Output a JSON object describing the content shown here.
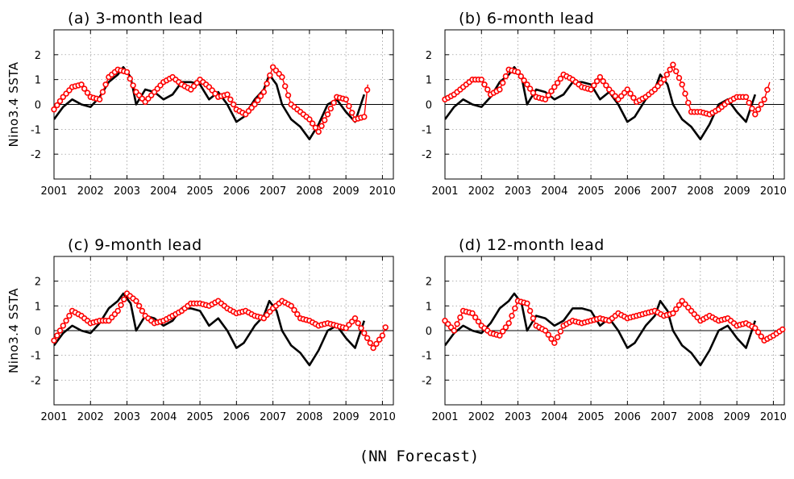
{
  "figure": {
    "caption": "(NN Forecast)",
    "colors": {
      "observed": "#000000",
      "forecast": "#ff0000"
    }
  },
  "chart_data": [
    {
      "type": "line",
      "title": "(a) 3-month lead",
      "ylabel": "Nino3.4 SSTA",
      "xlim": [
        2001.0,
        2010.3
      ],
      "ylim": [
        -3,
        3
      ],
      "xticks": [
        "2001",
        "2002",
        "2003",
        "2004",
        "2005",
        "2006",
        "2007",
        "2008",
        "2009",
        "2010"
      ],
      "yticks": [
        "-2",
        "-1",
        "0",
        "1",
        "2"
      ],
      "grid": true,
      "observed": {
        "x": [
          2001.0,
          2001.25,
          2001.5,
          2001.75,
          2002.0,
          2002.25,
          2002.5,
          2002.75,
          2002.9,
          2003.1,
          2003.25,
          2003.5,
          2003.75,
          2004.0,
          2004.25,
          2004.5,
          2004.75,
          2005.0,
          2005.25,
          2005.5,
          2005.75,
          2006.0,
          2006.2,
          2006.5,
          2006.75,
          2006.9,
          2007.1,
          2007.25,
          2007.5,
          2007.75,
          2008.0,
          2008.25,
          2008.5,
          2008.75,
          2009.0,
          2009.25,
          2009.5
        ],
        "y": [
          -0.6,
          -0.1,
          0.2,
          0.0,
          -0.1,
          0.3,
          0.9,
          1.2,
          1.5,
          1.1,
          0.0,
          0.6,
          0.5,
          0.2,
          0.4,
          0.9,
          0.9,
          0.8,
          0.2,
          0.5,
          0.0,
          -0.7,
          -0.5,
          0.2,
          0.6,
          1.2,
          0.8,
          0.0,
          -0.6,
          -0.9,
          -1.4,
          -0.8,
          0.0,
          0.2,
          -0.3,
          -0.7,
          0.4
        ]
      },
      "forecast": {
        "x": [
          2001.0,
          2001.25,
          2001.5,
          2001.75,
          2002.0,
          2002.25,
          2002.5,
          2002.75,
          2003.0,
          2003.25,
          2003.5,
          2003.75,
          2004.0,
          2004.25,
          2004.5,
          2004.75,
          2005.0,
          2005.25,
          2005.5,
          2005.75,
          2006.0,
          2006.25,
          2006.5,
          2006.75,
          2007.0,
          2007.25,
          2007.5,
          2007.75,
          2008.0,
          2008.25,
          2008.5,
          2008.75,
          2009.0,
          2009.25,
          2009.5,
          2009.6
        ],
        "y": [
          -0.2,
          0.3,
          0.7,
          0.8,
          0.3,
          0.2,
          1.1,
          1.4,
          1.3,
          0.5,
          0.1,
          0.5,
          0.9,
          1.1,
          0.8,
          0.6,
          1.0,
          0.7,
          0.3,
          0.4,
          -0.2,
          -0.4,
          0.0,
          0.5,
          1.5,
          1.1,
          0.0,
          -0.3,
          -0.6,
          -1.1,
          -0.4,
          0.3,
          0.2,
          -0.6,
          -0.5,
          0.8
        ]
      }
    },
    {
      "type": "line",
      "title": "(b) 6-month lead",
      "ylabel": "",
      "xlim": [
        2001.0,
        2010.3
      ],
      "ylim": [
        -3,
        3
      ],
      "xticks": [
        "2001",
        "2002",
        "2003",
        "2004",
        "2005",
        "2006",
        "2007",
        "2008",
        "2009",
        "2010"
      ],
      "yticks": [
        "-2",
        "-1",
        "0",
        "1",
        "2"
      ],
      "grid": true,
      "observed": {
        "x": [
          2001.0,
          2001.25,
          2001.5,
          2001.75,
          2002.0,
          2002.25,
          2002.5,
          2002.75,
          2002.9,
          2003.1,
          2003.25,
          2003.5,
          2003.75,
          2004.0,
          2004.25,
          2004.5,
          2004.75,
          2005.0,
          2005.25,
          2005.5,
          2005.75,
          2006.0,
          2006.2,
          2006.5,
          2006.75,
          2006.9,
          2007.1,
          2007.25,
          2007.5,
          2007.75,
          2008.0,
          2008.25,
          2008.5,
          2008.75,
          2009.0,
          2009.25,
          2009.5
        ],
        "y": [
          -0.6,
          -0.1,
          0.2,
          0.0,
          -0.1,
          0.3,
          0.9,
          1.2,
          1.5,
          1.1,
          0.0,
          0.6,
          0.5,
          0.2,
          0.4,
          0.9,
          0.9,
          0.8,
          0.2,
          0.5,
          0.0,
          -0.7,
          -0.5,
          0.2,
          0.6,
          1.2,
          0.8,
          0.0,
          -0.6,
          -0.9,
          -1.4,
          -0.8,
          0.0,
          0.2,
          -0.3,
          -0.7,
          0.4
        ]
      },
      "forecast": {
        "x": [
          2001.0,
          2001.25,
          2001.5,
          2001.75,
          2002.0,
          2002.25,
          2002.5,
          2002.75,
          2003.0,
          2003.25,
          2003.5,
          2003.75,
          2004.0,
          2004.25,
          2004.5,
          2004.75,
          2005.0,
          2005.25,
          2005.5,
          2005.75,
          2006.0,
          2006.25,
          2006.5,
          2006.75,
          2007.0,
          2007.25,
          2007.5,
          2007.75,
          2008.0,
          2008.25,
          2008.5,
          2008.75,
          2009.0,
          2009.25,
          2009.5,
          2009.75,
          2009.9
        ],
        "y": [
          0.2,
          0.4,
          0.7,
          1.0,
          1.0,
          0.4,
          0.6,
          1.4,
          1.3,
          0.8,
          0.3,
          0.2,
          0.7,
          1.2,
          1.0,
          0.7,
          0.6,
          1.1,
          0.6,
          0.2,
          0.6,
          0.1,
          0.3,
          0.6,
          1.0,
          1.6,
          0.8,
          -0.3,
          -0.3,
          -0.4,
          -0.2,
          0.1,
          0.3,
          0.3,
          -0.4,
          0.2,
          0.9
        ]
      }
    },
    {
      "type": "line",
      "title": "(c) 9-month lead",
      "ylabel": "Nino3.4 SSTA",
      "xlim": [
        2001.0,
        2010.3
      ],
      "ylim": [
        -3,
        3
      ],
      "xticks": [
        "2001",
        "2002",
        "2003",
        "2004",
        "2005",
        "2006",
        "2007",
        "2008",
        "2009",
        "2010"
      ],
      "yticks": [
        "-2",
        "-1",
        "0",
        "1",
        "2"
      ],
      "grid": true,
      "observed": {
        "x": [
          2001.0,
          2001.25,
          2001.5,
          2001.75,
          2002.0,
          2002.25,
          2002.5,
          2002.75,
          2002.9,
          2003.1,
          2003.25,
          2003.5,
          2003.75,
          2004.0,
          2004.25,
          2004.5,
          2004.75,
          2005.0,
          2005.25,
          2005.5,
          2005.75,
          2006.0,
          2006.2,
          2006.5,
          2006.75,
          2006.9,
          2007.1,
          2007.25,
          2007.5,
          2007.75,
          2008.0,
          2008.25,
          2008.5,
          2008.75,
          2009.0,
          2009.25,
          2009.5
        ],
        "y": [
          -0.6,
          -0.1,
          0.2,
          0.0,
          -0.1,
          0.3,
          0.9,
          1.2,
          1.5,
          1.1,
          0.0,
          0.6,
          0.5,
          0.2,
          0.4,
          0.9,
          0.9,
          0.8,
          0.2,
          0.5,
          0.0,
          -0.7,
          -0.5,
          0.2,
          0.6,
          1.2,
          0.8,
          0.0,
          -0.6,
          -0.9,
          -1.4,
          -0.8,
          0.0,
          0.2,
          -0.3,
          -0.7,
          0.4
        ]
      },
      "forecast": {
        "x": [
          2001.0,
          2001.25,
          2001.5,
          2001.75,
          2002.0,
          2002.25,
          2002.5,
          2002.75,
          2003.0,
          2003.25,
          2003.5,
          2003.75,
          2004.0,
          2004.25,
          2004.5,
          2004.75,
          2005.0,
          2005.25,
          2005.5,
          2005.75,
          2006.0,
          2006.25,
          2006.5,
          2006.75,
          2007.0,
          2007.25,
          2007.5,
          2007.75,
          2008.0,
          2008.25,
          2008.5,
          2008.75,
          2009.0,
          2009.25,
          2009.5,
          2009.75,
          2010.0,
          2010.1
        ],
        "y": [
          -0.4,
          0.2,
          0.8,
          0.6,
          0.3,
          0.4,
          0.4,
          0.8,
          1.5,
          1.2,
          0.6,
          0.3,
          0.4,
          0.6,
          0.8,
          1.1,
          1.1,
          1.0,
          1.2,
          0.9,
          0.7,
          0.8,
          0.6,
          0.5,
          0.9,
          1.2,
          1.0,
          0.5,
          0.4,
          0.2,
          0.3,
          0.2,
          0.1,
          0.5,
          -0.1,
          -0.7,
          -0.2,
          0.2
        ]
      }
    },
    {
      "type": "line",
      "title": "(d) 12-month lead",
      "ylabel": "",
      "xlim": [
        2001.0,
        2010.3
      ],
      "ylim": [
        -3,
        3
      ],
      "xticks": [
        "2001",
        "2002",
        "2003",
        "2004",
        "2005",
        "2006",
        "2007",
        "2008",
        "2009",
        "2010"
      ],
      "yticks": [
        "-2",
        "-1",
        "0",
        "1",
        "2"
      ],
      "grid": true,
      "observed": {
        "x": [
          2001.0,
          2001.25,
          2001.5,
          2001.75,
          2002.0,
          2002.25,
          2002.5,
          2002.75,
          2002.9,
          2003.1,
          2003.25,
          2003.5,
          2003.75,
          2004.0,
          2004.25,
          2004.5,
          2004.75,
          2005.0,
          2005.25,
          2005.5,
          2005.75,
          2006.0,
          2006.2,
          2006.5,
          2006.75,
          2006.9,
          2007.1,
          2007.25,
          2007.5,
          2007.75,
          2008.0,
          2008.25,
          2008.5,
          2008.75,
          2009.0,
          2009.25,
          2009.5
        ],
        "y": [
          -0.6,
          -0.1,
          0.2,
          0.0,
          -0.1,
          0.3,
          0.9,
          1.2,
          1.5,
          1.1,
          0.0,
          0.6,
          0.5,
          0.2,
          0.4,
          0.9,
          0.9,
          0.8,
          0.2,
          0.5,
          0.0,
          -0.7,
          -0.5,
          0.2,
          0.6,
          1.2,
          0.8,
          0.0,
          -0.6,
          -0.9,
          -1.4,
          -0.8,
          0.0,
          0.2,
          -0.3,
          -0.7,
          0.4
        ]
      },
      "forecast": {
        "x": [
          2001.0,
          2001.25,
          2001.5,
          2001.75,
          2002.0,
          2002.25,
          2002.5,
          2002.75,
          2003.0,
          2003.25,
          2003.5,
          2003.75,
          2004.0,
          2004.25,
          2004.5,
          2004.75,
          2005.0,
          2005.25,
          2005.5,
          2005.75,
          2006.0,
          2006.25,
          2006.5,
          2006.75,
          2007.0,
          2007.25,
          2007.5,
          2007.75,
          2008.0,
          2008.25,
          2008.5,
          2008.75,
          2009.0,
          2009.25,
          2009.5,
          2009.75,
          2010.0,
          2010.3
        ],
        "y": [
          0.4,
          0.0,
          0.8,
          0.7,
          0.2,
          -0.1,
          -0.2,
          0.3,
          1.2,
          1.1,
          0.2,
          0.0,
          -0.5,
          0.2,
          0.4,
          0.3,
          0.4,
          0.5,
          0.4,
          0.7,
          0.5,
          0.6,
          0.7,
          0.8,
          0.6,
          0.7,
          1.2,
          0.8,
          0.4,
          0.6,
          0.4,
          0.5,
          0.2,
          0.3,
          0.1,
          -0.4,
          -0.2,
          0.1
        ]
      }
    }
  ]
}
